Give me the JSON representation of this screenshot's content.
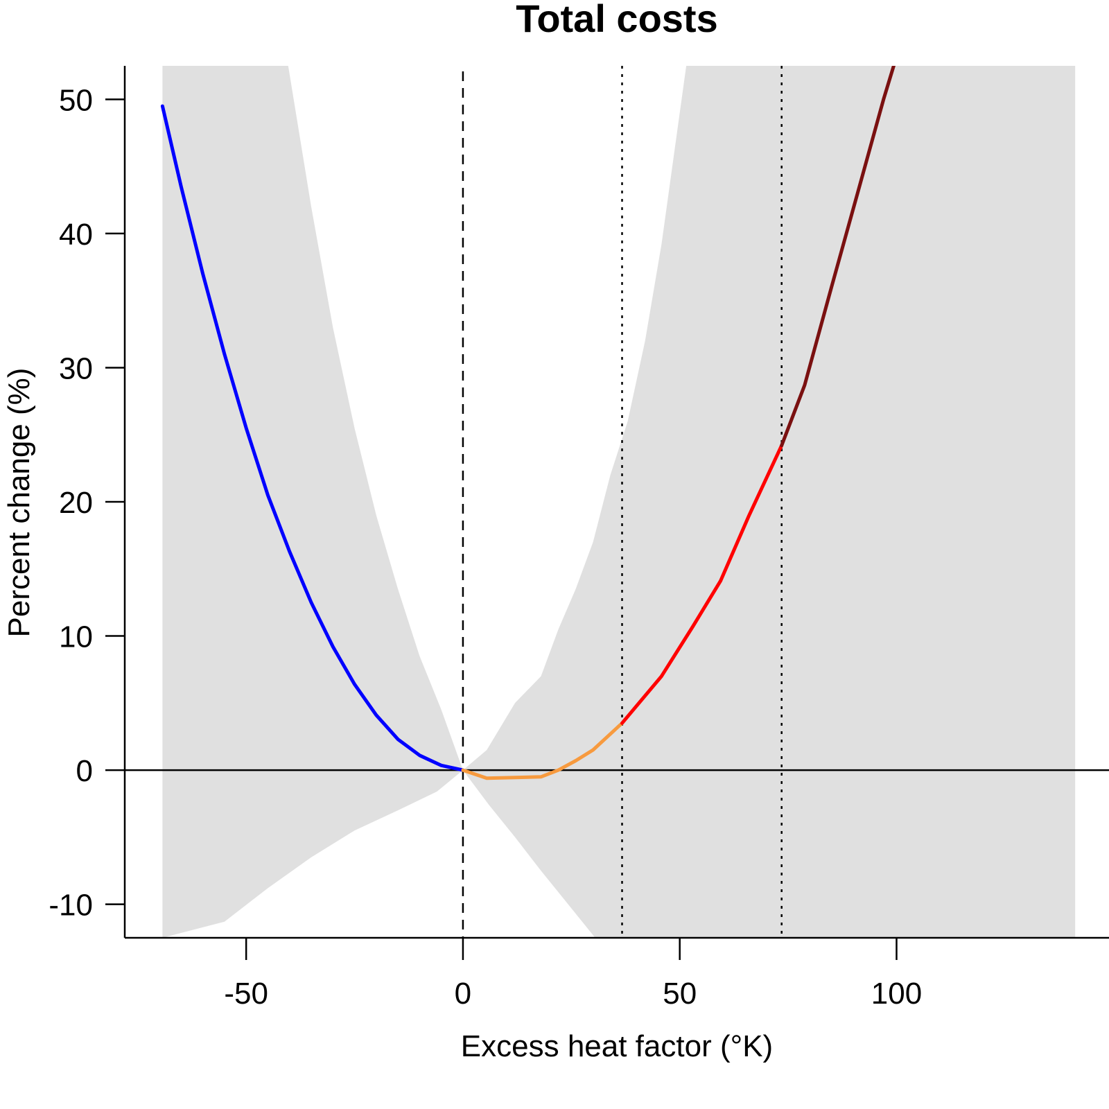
{
  "chart_data": {
    "type": "line",
    "title": "Total costs",
    "xlabel": "Excess heat factor (°K)",
    "ylabel": "Percent change (%)",
    "xlim": [
      -78,
      149
    ],
    "ylim": [
      -12.5,
      52.5
    ],
    "x_ticks": [
      -50,
      0,
      50,
      100
    ],
    "y_ticks": [
      -10,
      0,
      10,
      20,
      30,
      40,
      50
    ],
    "grid": false,
    "legend": "none",
    "reference_lines": {
      "horizontal_zero": 0,
      "dashed_x": 0,
      "dotted_x": [
        36.7,
        73.5
      ]
    },
    "colors": {
      "cold": "#0000ff",
      "low_heat": "#f79a3e",
      "heat": "#ff0000",
      "extreme_heat": "#7a1010",
      "confidence_band": "#e0e0e0"
    },
    "confidence_band": {
      "region": "shaded",
      "x_min": -69.3,
      "x_max": 141.2,
      "upper": [
        {
          "x": -69.3,
          "y": 52.5
        },
        {
          "x": -40.3,
          "y": 52.5
        },
        {
          "x": -35,
          "y": 42
        },
        {
          "x": -30,
          "y": 33
        },
        {
          "x": -25,
          "y": 25.5
        },
        {
          "x": -20,
          "y": 19
        },
        {
          "x": -15,
          "y": 13.5
        },
        {
          "x": -10,
          "y": 8.5
        },
        {
          "x": -5,
          "y": 4.5
        },
        {
          "x": 0,
          "y": 0
        },
        {
          "x": 5.5,
          "y": 1.5
        },
        {
          "x": 12,
          "y": 5
        },
        {
          "x": 18,
          "y": 7
        },
        {
          "x": 22,
          "y": 10.5
        },
        {
          "x": 26,
          "y": 13.5
        },
        {
          "x": 30,
          "y": 17
        },
        {
          "x": 34,
          "y": 22
        },
        {
          "x": 38,
          "y": 26
        },
        {
          "x": 42,
          "y": 32
        },
        {
          "x": 45.8,
          "y": 39.2
        },
        {
          "x": 51.5,
          "y": 52.5
        },
        {
          "x": 141.2,
          "y": 52.5
        }
      ],
      "lower": [
        {
          "x": 141.2,
          "y": -12.5
        },
        {
          "x": 30.5,
          "y": -12.5
        },
        {
          "x": 25,
          "y": -10.3
        },
        {
          "x": 18,
          "y": -7.5
        },
        {
          "x": 12,
          "y": -5
        },
        {
          "x": 6,
          "y": -2.6
        },
        {
          "x": 0,
          "y": 0
        },
        {
          "x": -6,
          "y": -1.6
        },
        {
          "x": -15,
          "y": -3
        },
        {
          "x": -25,
          "y": -4.5
        },
        {
          "x": -35,
          "y": -6.5
        },
        {
          "x": -45,
          "y": -8.8
        },
        {
          "x": -55,
          "y": -11.3
        },
        {
          "x": -69.3,
          "y": -12.5
        }
      ]
    },
    "series": [
      {
        "color": "#0000ff",
        "points": [
          {
            "x": -69.3,
            "y": 49.5
          },
          {
            "x": -65,
            "y": 43.5
          },
          {
            "x": -60,
            "y": 37
          },
          {
            "x": -55,
            "y": 31
          },
          {
            "x": -50,
            "y": 25.5
          },
          {
            "x": -45,
            "y": 20.5
          },
          {
            "x": -40,
            "y": 16.3
          },
          {
            "x": -35,
            "y": 12.5
          },
          {
            "x": -30,
            "y": 9.2
          },
          {
            "x": -25,
            "y": 6.4
          },
          {
            "x": -20,
            "y": 4.1
          },
          {
            "x": -15,
            "y": 2.3
          },
          {
            "x": -10,
            "y": 1.1
          },
          {
            "x": -5,
            "y": 0.35
          },
          {
            "x": 0,
            "y": 0
          }
        ]
      },
      {
        "color": "#f79a3e",
        "points": [
          {
            "x": 0,
            "y": 0
          },
          {
            "x": 5.5,
            "y": -0.6
          },
          {
            "x": 12,
            "y": -0.55
          },
          {
            "x": 18,
            "y": -0.5
          },
          {
            "x": 22,
            "y": 0
          },
          {
            "x": 26,
            "y": 0.7
          },
          {
            "x": 30,
            "y": 1.5
          },
          {
            "x": 36.7,
            "y": 3.5
          }
        ]
      },
      {
        "color": "#ff0000",
        "points": [
          {
            "x": 36.7,
            "y": 3.5
          },
          {
            "x": 45.8,
            "y": 7
          },
          {
            "x": 53,
            "y": 10.7
          },
          {
            "x": 59.4,
            "y": 14.1
          },
          {
            "x": 66,
            "y": 19
          },
          {
            "x": 73.5,
            "y": 24.2
          }
        ]
      },
      {
        "color": "#7a1010",
        "points": [
          {
            "x": 73.5,
            "y": 24.2
          },
          {
            "x": 78.8,
            "y": 28.7
          },
          {
            "x": 85,
            "y": 36
          },
          {
            "x": 91,
            "y": 43
          },
          {
            "x": 97,
            "y": 50
          },
          {
            "x": 100,
            "y": 53.2
          }
        ]
      }
    ]
  }
}
